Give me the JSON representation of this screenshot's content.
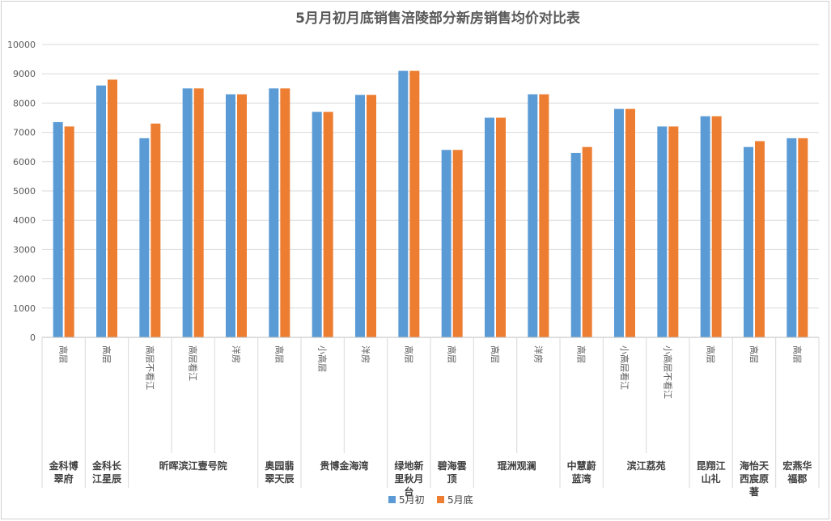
{
  "chart_data": {
    "type": "bar",
    "title": "5月月初月底销售涪陵部分新房销售均价对比表",
    "xlabel": "",
    "ylabel": "",
    "ylim": [
      0,
      10000
    ],
    "yticks": [
      "0",
      "1000",
      "2000",
      "3000",
      "4000",
      "5000",
      "6000",
      "7000",
      "8000",
      "9000",
      "10000"
    ],
    "grid": true,
    "legend_position": "bottom",
    "categories": [
      "高层",
      "高层",
      "高层不看江",
      "高层看江",
      "洋房",
      "高层",
      "小高层",
      "洋房",
      "高层",
      "高层",
      "高层",
      "洋房",
      "高层",
      "小高层看江",
      "小高层不看江",
      "高层",
      "高层",
      "高层"
    ],
    "groups": [
      {
        "label": "金科博翠府",
        "span": 1
      },
      {
        "label": "金科长江星辰",
        "span": 1
      },
      {
        "label": "昕晖滨江壹号院",
        "span": 3
      },
      {
        "label": "奥园翡翠天辰",
        "span": 1
      },
      {
        "label": "贵博金海湾",
        "span": 2
      },
      {
        "label": "绿地新里秋月台",
        "span": 1
      },
      {
        "label": "碧海雲顶",
        "span": 1
      },
      {
        "label": "琨洲观澜",
        "span": 2
      },
      {
        "label": "中慧蔚蓝湾",
        "span": 1
      },
      {
        "label": "滨江荔苑",
        "span": 2
      },
      {
        "label": "昆翔江山礼",
        "span": 1
      },
      {
        "label": "海怡天西宸原著",
        "span": 1
      },
      {
        "label": "宏燕华福郡",
        "span": 1
      }
    ],
    "series": [
      {
        "name": "5月初",
        "color": "#5b9bd5",
        "values": [
          7350,
          8600,
          6800,
          8500,
          8300,
          8500,
          7700,
          8280,
          9100,
          6400,
          7500,
          8300,
          6300,
          7800,
          7200,
          7550,
          6500,
          6800
        ]
      },
      {
        "name": "5月底",
        "color": "#ed7d31",
        "values": [
          7200,
          8800,
          7300,
          8500,
          8300,
          8500,
          7700,
          8280,
          9100,
          6400,
          7500,
          8300,
          6500,
          7800,
          7200,
          7550,
          6700,
          6800
        ]
      }
    ]
  }
}
